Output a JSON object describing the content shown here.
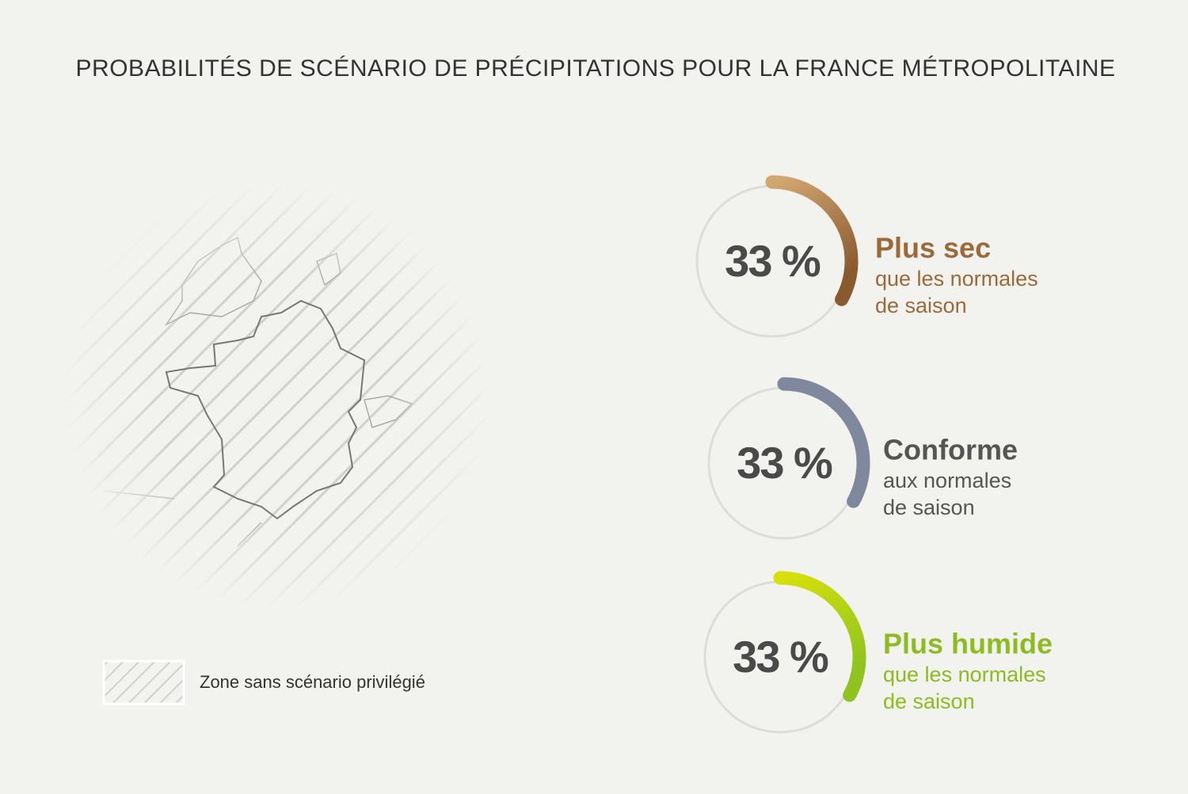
{
  "title": "PROBABILITÉS DE SCÉNARIO DE PRÉCIPITATIONS POUR LA FRANCE MÉTROPOLITAINE",
  "map_legend": {
    "label": "Zone sans scénario privilégié"
  },
  "chart_data": [
    {
      "type": "gauge",
      "value": 33,
      "value_label": "33 %",
      "ylim": [
        0,
        100
      ],
      "title": "Plus sec",
      "subtitle_lines": [
        "que les normales",
        "de saison"
      ],
      "colors": [
        "#d2a772",
        "#8a5a2f"
      ],
      "text_color": "#9b6a3b"
    },
    {
      "type": "gauge",
      "value": 33,
      "value_label": "33 %",
      "ylim": [
        0,
        100
      ],
      "title": "Conforme",
      "subtitle_lines": [
        "aux normales",
        "de saison"
      ],
      "colors": [
        "#7f889c",
        "#7f889c"
      ],
      "text_color": "#555555"
    },
    {
      "type": "gauge",
      "value": 33,
      "value_label": "33 %",
      "ylim": [
        0,
        100
      ],
      "title": "Plus humide",
      "subtitle_lines": [
        "que les normales",
        "de saison"
      ],
      "colors": [
        "#d8e00a",
        "#8fc420"
      ],
      "text_color": "#8dbb22"
    }
  ]
}
